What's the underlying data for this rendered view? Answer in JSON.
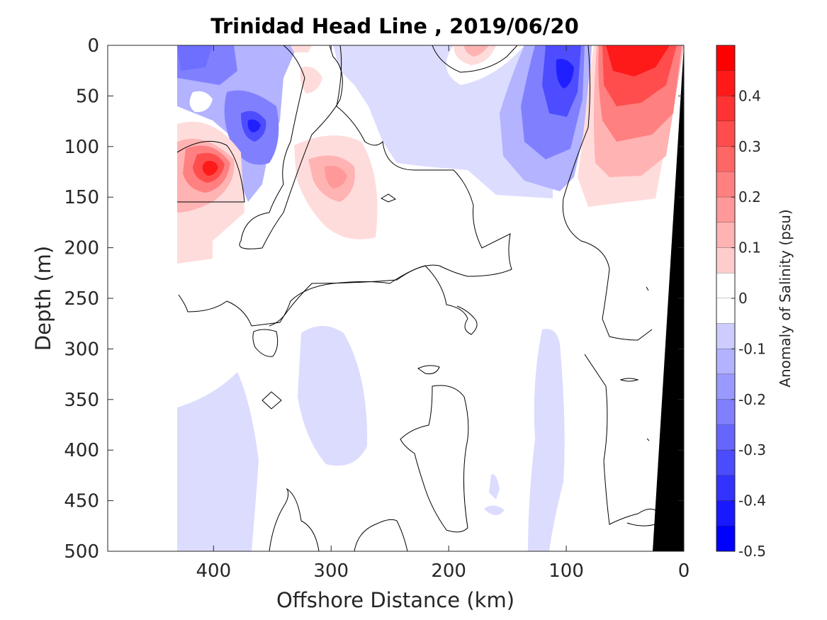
{
  "chart_data": {
    "type": "heatmap",
    "title": "Trinidad Head Line , 2019/06/20",
    "xlabel": "Offshore Distance (km)",
    "ylabel": "Depth (m)",
    "xlim": [
      490,
      0
    ],
    "ylim": [
      0,
      500
    ],
    "x_reversed": true,
    "y_reversed": true,
    "x_ticks": [
      "400",
      "300",
      "200",
      "100",
      "0"
    ],
    "x_tick_values": [
      400,
      300,
      200,
      100,
      0
    ],
    "y_ticks": [
      "0",
      "50",
      "100",
      "150",
      "200",
      "250",
      "300",
      "350",
      "400",
      "450",
      "500"
    ],
    "y_tick_values": [
      0,
      50,
      100,
      150,
      200,
      250,
      300,
      350,
      400,
      450,
      500
    ],
    "colorbar": {
      "label": "Anomaly of Salinity (psu)",
      "range": [
        -0.5,
        0.5
      ],
      "step": 0.05,
      "tick_labels": [
        "0.4",
        "0.3",
        "0.2",
        "0.1",
        "0",
        "-0.1",
        "-0.2",
        "-0.3",
        "-0.4",
        "-0.5"
      ],
      "tick_values": [
        0.4,
        0.3,
        0.2,
        0.1,
        0,
        -0.1,
        -0.2,
        -0.3,
        -0.4,
        -0.5
      ],
      "low_color": "#0000ff",
      "mid_color": "#ffffff",
      "high_color": "#ff0000"
    },
    "data_extent_km": [
      0,
      432
    ],
    "bathymetry_color": "#000000",
    "features": [
      {
        "name": "nearshore high salinity core",
        "x": 45,
        "y": 25,
        "value": 0.45
      },
      {
        "name": "subsurface high salinity eddy",
        "x": 400,
        "y": 120,
        "value": 0.45
      },
      {
        "name": "low salinity core",
        "x": 100,
        "y": 30,
        "value": -0.35
      },
      {
        "name": "low salinity core",
        "x": 365,
        "y": 80,
        "value": -0.35
      },
      {
        "name": "surface low salinity band",
        "x": 410,
        "y": 30,
        "value": -0.2
      },
      {
        "name": "positive anomaly lens",
        "x": 285,
        "y": 135,
        "value": 0.15
      },
      {
        "name": "deep low salinity patch",
        "x": 300,
        "y": 360,
        "value": -0.05
      },
      {
        "name": "deep low salinity patch",
        "x": 385,
        "y": 420,
        "value": -0.05
      }
    ]
  }
}
